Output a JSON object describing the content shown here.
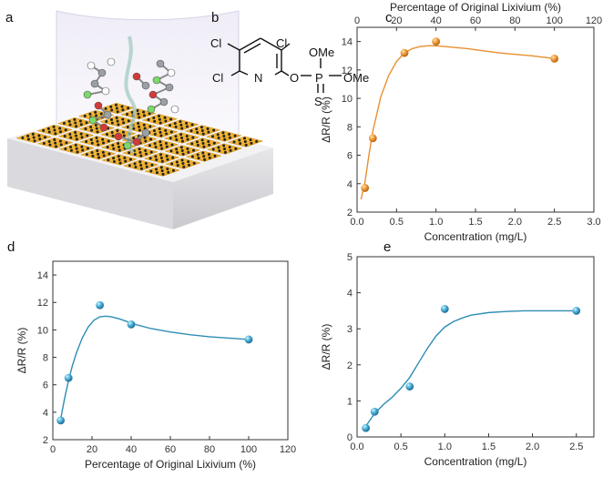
{
  "panels": {
    "a": "a",
    "b": "b",
    "c": "c",
    "d": "d",
    "e": "e"
  },
  "structure": {
    "cl_top_left": "Cl",
    "cl_top_right": "Cl",
    "cl_bottom": "Cl",
    "n": "N",
    "o_link": "O",
    "p": "P",
    "ome_top": "OMe",
    "ome_right": "OMe",
    "s": "S"
  },
  "colors": {
    "orange": "#e8902f",
    "blue": "#2e8db5",
    "blue_light": "#7fd0ee",
    "orange_light": "#ffd08a"
  },
  "chart_data": [
    {
      "id": "c",
      "type": "scatter",
      "xlabel": "Concentration (mg/L)",
      "ylabel": "ΔR/R (%)",
      "top_xlabel": "Percentage of Original Lixivium (%)",
      "xlim": [
        0.0,
        3.0
      ],
      "ylim": [
        2,
        15
      ],
      "top_xlim": [
        0,
        120
      ],
      "xticks": [
        "0.0",
        "0.5",
        "1.0",
        "1.5",
        "2.0",
        "2.5",
        "3.0"
      ],
      "yticks": [
        "2",
        "4",
        "6",
        "8",
        "10",
        "12",
        "14"
      ],
      "top_xticks": [
        "0",
        "20",
        "40",
        "60",
        "80",
        "100",
        "120"
      ],
      "x": [
        0.1,
        0.2,
        0.6,
        1.0,
        2.5
      ],
      "y": [
        3.7,
        7.2,
        13.2,
        14.0,
        12.8
      ],
      "fit_x": [
        0.05,
        0.1,
        0.15,
        0.2,
        0.3,
        0.4,
        0.5,
        0.6,
        0.7,
        0.8,
        0.9,
        1.0,
        1.1,
        1.2,
        1.4,
        1.6,
        1.8,
        2.0,
        2.2,
        2.5
      ],
      "fit_y": [
        2.9,
        4.1,
        6.0,
        7.7,
        10.1,
        11.6,
        12.6,
        13.2,
        13.5,
        13.65,
        13.7,
        13.7,
        13.65,
        13.6,
        13.5,
        13.35,
        13.2,
        13.1,
        13.0,
        12.8
      ]
    },
    {
      "id": "d",
      "type": "scatter",
      "xlabel": "Percentage of Original Lixivium (%)",
      "ylabel": "ΔR/R (%)",
      "xlim": [
        0,
        120
      ],
      "ylim": [
        2,
        15
      ],
      "xticks": [
        "0",
        "20",
        "40",
        "60",
        "80",
        "100",
        "120"
      ],
      "yticks": [
        "2",
        "4",
        "6",
        "8",
        "10",
        "12",
        "14"
      ],
      "x": [
        4,
        8,
        24,
        40,
        100
      ],
      "y": [
        3.4,
        6.5,
        11.8,
        10.4,
        9.3
      ],
      "fit_x": [
        4,
        6,
        8,
        10,
        12,
        15,
        18,
        21,
        24,
        27,
        30,
        34,
        38,
        42,
        50,
        60,
        70,
        80,
        90,
        100
      ],
      "fit_y": [
        3.5,
        5.0,
        6.3,
        7.4,
        8.3,
        9.4,
        10.2,
        10.7,
        10.95,
        11.0,
        10.95,
        10.8,
        10.6,
        10.4,
        10.1,
        9.85,
        9.65,
        9.5,
        9.4,
        9.3
      ]
    },
    {
      "id": "e",
      "type": "scatter",
      "xlabel": "Concentration (mg/L)",
      "ylabel": "ΔR/R (%)",
      "xlim": [
        0.0,
        2.7
      ],
      "ylim": [
        0,
        5
      ],
      "xticks": [
        "0.0",
        "0.5",
        "1.0",
        "1.5",
        "2.0",
        "2.5"
      ],
      "yticks": [
        "0",
        "1",
        "2",
        "3",
        "4",
        "5"
      ],
      "x": [
        0.1,
        0.2,
        0.6,
        1.0,
        2.5
      ],
      "y": [
        0.25,
        0.7,
        1.4,
        3.55,
        3.5
      ],
      "fit_x": [
        0.1,
        0.2,
        0.3,
        0.4,
        0.5,
        0.6,
        0.7,
        0.8,
        0.9,
        1.0,
        1.1,
        1.2,
        1.3,
        1.5,
        1.7,
        1.9,
        2.1,
        2.3,
        2.5
      ],
      "fit_y": [
        0.3,
        0.65,
        0.9,
        1.1,
        1.35,
        1.65,
        2.05,
        2.45,
        2.8,
        3.05,
        3.2,
        3.3,
        3.38,
        3.45,
        3.48,
        3.5,
        3.5,
        3.5,
        3.5
      ]
    }
  ]
}
